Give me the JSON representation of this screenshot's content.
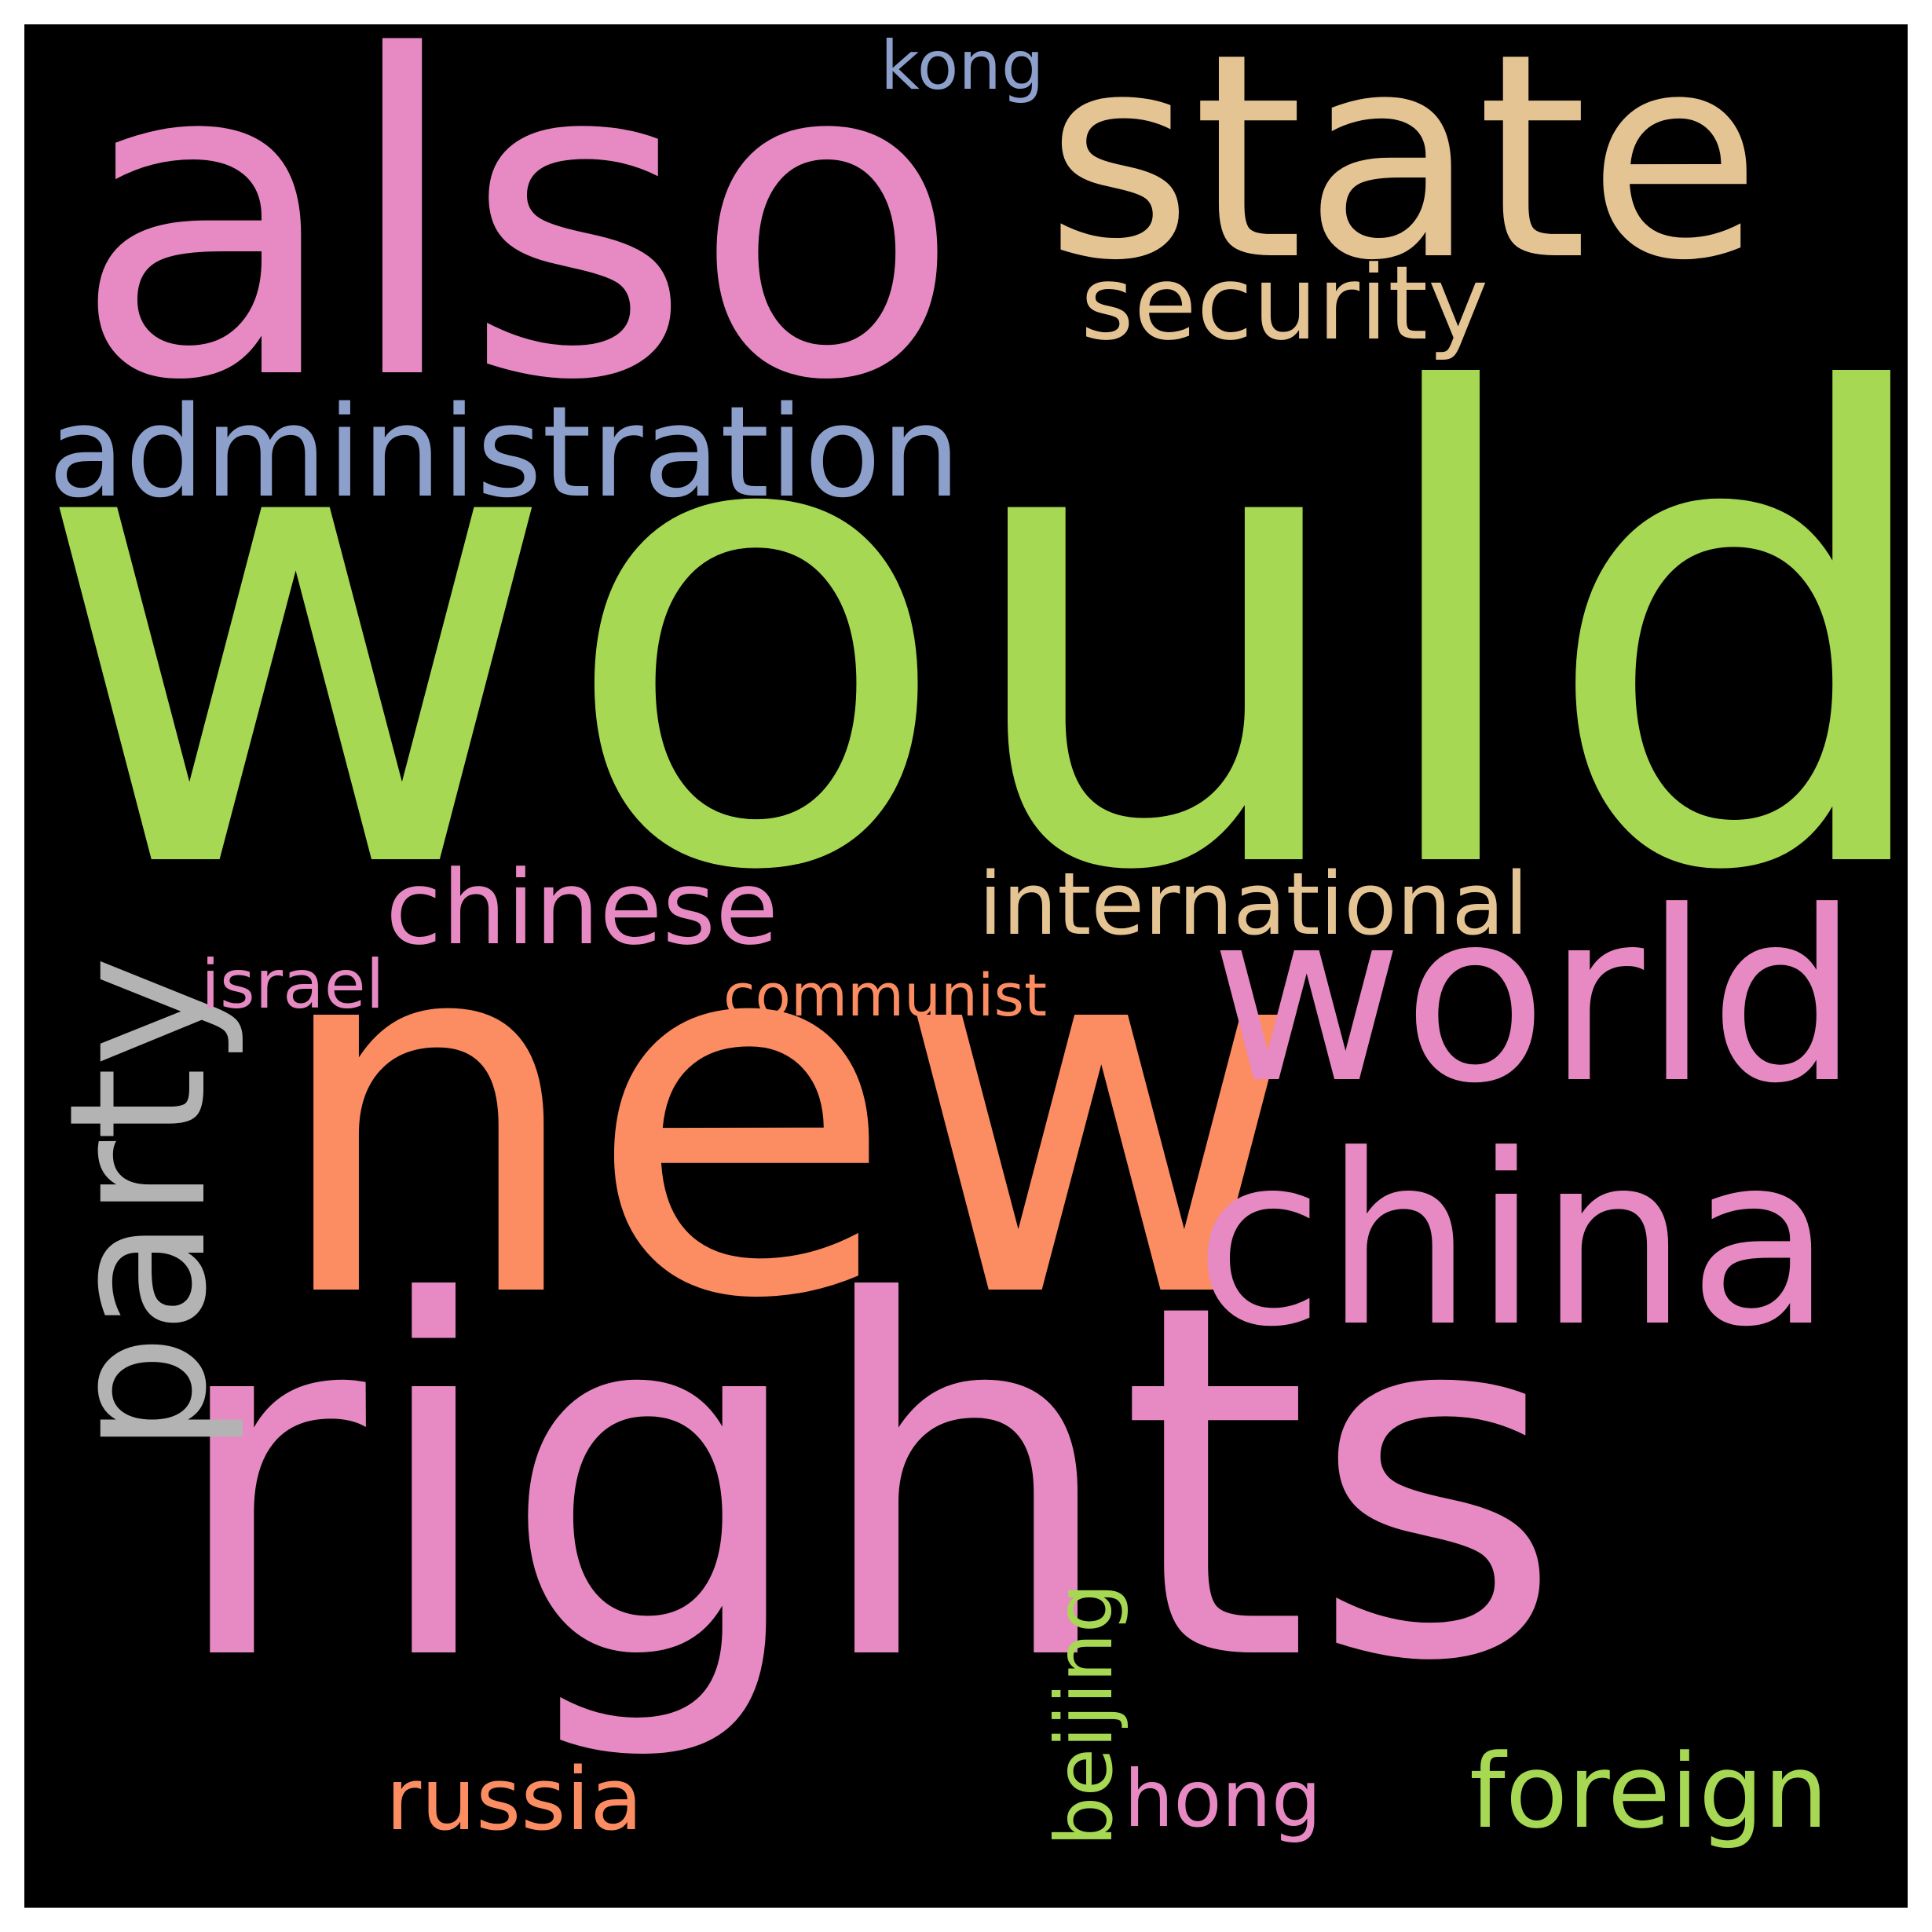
{
  "colors": {
    "background": "#000000",
    "frame": "#ffffff"
  },
  "words": [
    {
      "key": "would",
      "text": "would",
      "color": "#a6d854",
      "orientation": "horizontal"
    },
    {
      "key": "new",
      "text": "new",
      "color": "#fc8d62",
      "orientation": "horizontal"
    },
    {
      "key": "rights",
      "text": "rights",
      "color": "#e78ac3",
      "orientation": "horizontal"
    },
    {
      "key": "also",
      "text": "also",
      "color": "#e78ac3",
      "orientation": "horizontal"
    },
    {
      "key": "state",
      "text": "state",
      "color": "#e5c494",
      "orientation": "horizontal"
    },
    {
      "key": "world",
      "text": "world",
      "color": "#e78ac3",
      "orientation": "horizontal"
    },
    {
      "key": "china",
      "text": "china",
      "color": "#e78ac3",
      "orientation": "horizontal"
    },
    {
      "key": "party",
      "text": "party",
      "color": "#b3b3b3",
      "orientation": "vertical"
    },
    {
      "key": "administration",
      "text": "administration",
      "color": "#8da0cb",
      "orientation": "horizontal"
    },
    {
      "key": "security",
      "text": "security",
      "color": "#e5c494",
      "orientation": "horizontal"
    },
    {
      "key": "chinese",
      "text": "chinese",
      "color": "#e78ac3",
      "orientation": "horizontal"
    },
    {
      "key": "international",
      "text": "international",
      "color": "#e5c494",
      "orientation": "horizontal"
    },
    {
      "key": "foreign",
      "text": "foreign",
      "color": "#a6d854",
      "orientation": "horizontal"
    },
    {
      "key": "russia",
      "text": "russia",
      "color": "#fc8d62",
      "orientation": "horizontal"
    },
    {
      "key": "beijing",
      "text": "beijing",
      "color": "#a6d854",
      "orientation": "vertical"
    },
    {
      "key": "hong",
      "text": "hong",
      "color": "#e78ac3",
      "orientation": "horizontal"
    },
    {
      "key": "kong",
      "text": "kong",
      "color": "#8da0cb",
      "orientation": "horizontal"
    },
    {
      "key": "israel",
      "text": "israel",
      "color": "#e78ac3",
      "orientation": "horizontal"
    },
    {
      "key": "communist",
      "text": "communist",
      "color": "#fc8d62",
      "orientation": "horizontal"
    }
  ]
}
